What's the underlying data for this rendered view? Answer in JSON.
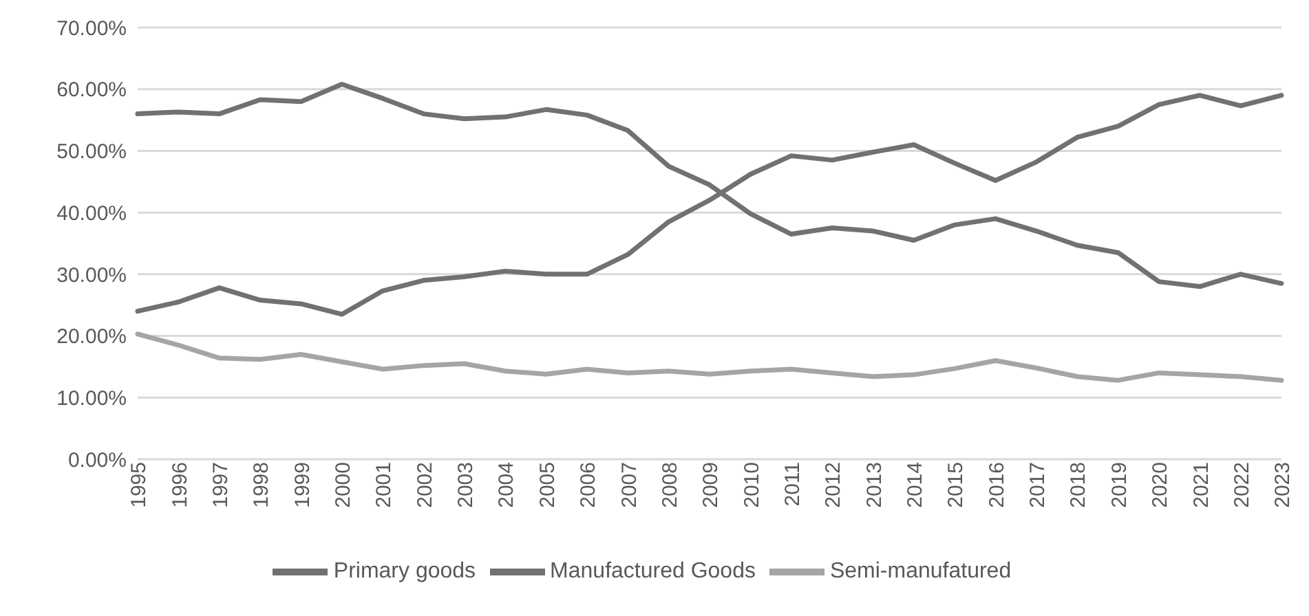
{
  "chart_data": {
    "type": "line",
    "categories": [
      "1995",
      "1996",
      "1997",
      "1998",
      "1999",
      "2000",
      "2001",
      "2002",
      "2003",
      "2004",
      "2005",
      "2006",
      "2007",
      "2008",
      "2009",
      "2010",
      "2011",
      "2012",
      "2013",
      "2014",
      "2015",
      "2016",
      "2017",
      "2018",
      "2019",
      "2020",
      "2021",
      "2022",
      "2023"
    ],
    "series": [
      {
        "name": "Primary goods",
        "color": "#717171",
        "values": [
          24,
          25.5,
          27.8,
          25.8,
          25.2,
          23.5,
          27.3,
          29,
          29.6,
          30.5,
          30,
          30,
          33.2,
          38.5,
          42,
          46.2,
          49.2,
          48.5,
          49.8,
          51,
          48,
          45.2,
          48.2,
          52.2,
          54,
          57.5,
          59,
          57.3,
          59
        ]
      },
      {
        "name": "Manufactured Goods",
        "color": "#717171",
        "values": [
          56,
          56.3,
          56,
          58.3,
          58,
          60.8,
          58.5,
          56,
          55.2,
          55.5,
          56.7,
          55.8,
          53.3,
          47.5,
          44.5,
          39.8,
          36.5,
          37.5,
          37,
          35.5,
          38,
          39,
          37,
          34.7,
          33.5,
          28.8,
          28,
          30,
          28.5
        ]
      },
      {
        "name": "Semi-manufatured",
        "color": "#a5a5a5",
        "values": [
          20.3,
          18.5,
          16.4,
          16.2,
          17,
          15.8,
          14.6,
          15.2,
          15.5,
          14.3,
          13.8,
          14.6,
          14,
          14.3,
          13.8,
          14.3,
          14.6,
          14,
          13.4,
          13.7,
          14.7,
          16,
          14.8,
          13.4,
          12.8,
          14,
          13.7,
          13.4,
          12.8
        ]
      }
    ],
    "ylim": [
      0,
      70
    ],
    "yticks": [
      {
        "value": 0,
        "label": "0.00%"
      },
      {
        "value": 10,
        "label": "10.00%"
      },
      {
        "value": 20,
        "label": "20.00%"
      },
      {
        "value": 30,
        "label": "30.00%"
      },
      {
        "value": 40,
        "label": "40.00%"
      },
      {
        "value": 50,
        "label": "50.00%"
      },
      {
        "value": 60,
        "label": "60.00%"
      },
      {
        "value": 70,
        "label": "70.00%"
      }
    ],
    "grid": "y",
    "legend": "bottom",
    "marker": "none",
    "line_style": "solid"
  }
}
